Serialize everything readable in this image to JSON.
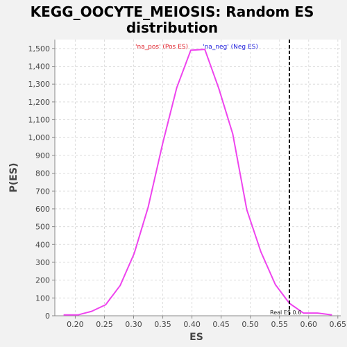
{
  "chart_data": {
    "type": "line",
    "title_line1": "KEGG_OOCYTE_MEIOSIS: Random ES",
    "title_line2": "distribution",
    "xlabel": "ES",
    "ylabel": "P(ES)",
    "xlim": [
      0.165,
      0.655
    ],
    "ylim": [
      0,
      1550
    ],
    "x_ticks": [
      0.2,
      0.25,
      0.3,
      0.35,
      0.4,
      0.45,
      0.5,
      0.55,
      0.6,
      0.65
    ],
    "x_tick_labels": [
      "0.20",
      "0.25",
      "0.30",
      "0.35",
      "0.40",
      "0.45",
      "0.50",
      "0.55",
      "0.60",
      "0.65"
    ],
    "y_ticks": [
      0,
      100,
      200,
      300,
      400,
      500,
      600,
      700,
      800,
      900,
      1000,
      1100,
      1200,
      1300,
      1400,
      1500
    ],
    "y_tick_labels": [
      "0",
      "100",
      "200",
      "300",
      "400",
      "500",
      "600",
      "700",
      "800",
      "900",
      "1,000",
      "1,100",
      "1,200",
      "1,300",
      "1,400",
      "1,500"
    ],
    "grid": true,
    "legend_pos_label": "'na_pos' (Pos ES)",
    "legend_neg_label": "'na_neg' (Neg ES)",
    "series": [
      {
        "color": "#ee44ee",
        "x": [
          0.18,
          0.205,
          0.228,
          0.252,
          0.277,
          0.301,
          0.325,
          0.35,
          0.374,
          0.398,
          0.422,
          0.446,
          0.47,
          0.494,
          0.518,
          0.543,
          0.567,
          0.591,
          0.615,
          0.64
        ],
        "y": [
          5,
          5,
          25,
          62,
          170,
          350,
          610,
          970,
          1280,
          1490,
          1495,
          1275,
          1020,
          595,
          360,
          175,
          70,
          15,
          15,
          5
        ]
      }
    ],
    "real_es": {
      "x": 0.567,
      "label": "Real ES 0.6"
    }
  }
}
